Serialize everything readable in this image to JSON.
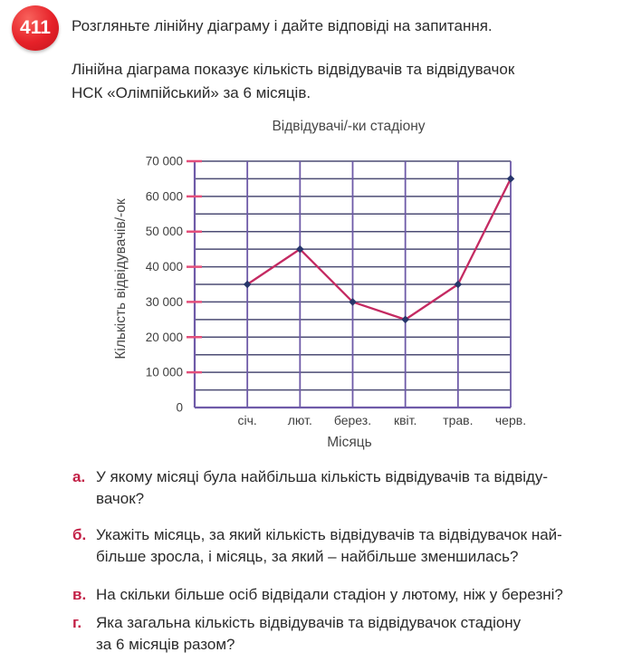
{
  "page": {
    "badge": "411",
    "intro": "Розгляньте лінійну діаграму і дайте відповіді на запитання.",
    "description": "Лінійна діаграма показує кількість відвідувачів та відвідувачок\nНСК «Олімпійський» за 6 місяців."
  },
  "chart_data": {
    "type": "line",
    "title": "Відвідувачі/-ки стадіону",
    "xlabel": "Місяць",
    "ylabel": "Кількість відвідувачів/-ок",
    "categories": [
      "січ.",
      "лют.",
      "берез.",
      "квіт.",
      "трав.",
      "черв."
    ],
    "values": [
      35000,
      45000,
      30000,
      25000,
      35000,
      65000
    ],
    "ylim": [
      0,
      70000
    ],
    "y_major_step": 10000,
    "y_minor_step": 5000,
    "y_tick_labels": [
      "0",
      "10 000",
      "20 000",
      "30 000",
      "40 000",
      "50 000",
      "60 000",
      "70 000"
    ],
    "grid": true,
    "legend": "none",
    "colors": {
      "line": "#c42a62",
      "point": "#27366b",
      "h_grid": "#4c4c74",
      "v_grid": "#6e5aa8",
      "axis": "#6e5aa8",
      "tick": "#e34f7b"
    }
  },
  "questions": [
    {
      "label": "а.",
      "text": "У якому місяці була найбільша кількість відвідувачів та відвіду-\nвачок?"
    },
    {
      "label": "б.",
      "text": "Укажіть місяць, за який кількість відвідувачів та відвідувачок най-\nбільше зросла, і місяць, за який – найбільше зменшилась?"
    },
    {
      "label": "в.",
      "text": "На скільки більше осіб відвідали стадіон у лютому, ніж у березні?"
    },
    {
      "label": "г.",
      "text": "Яка загальна кількість відвідувачів та відвідувачок стадіону\nза 6 місяців разом?"
    }
  ]
}
